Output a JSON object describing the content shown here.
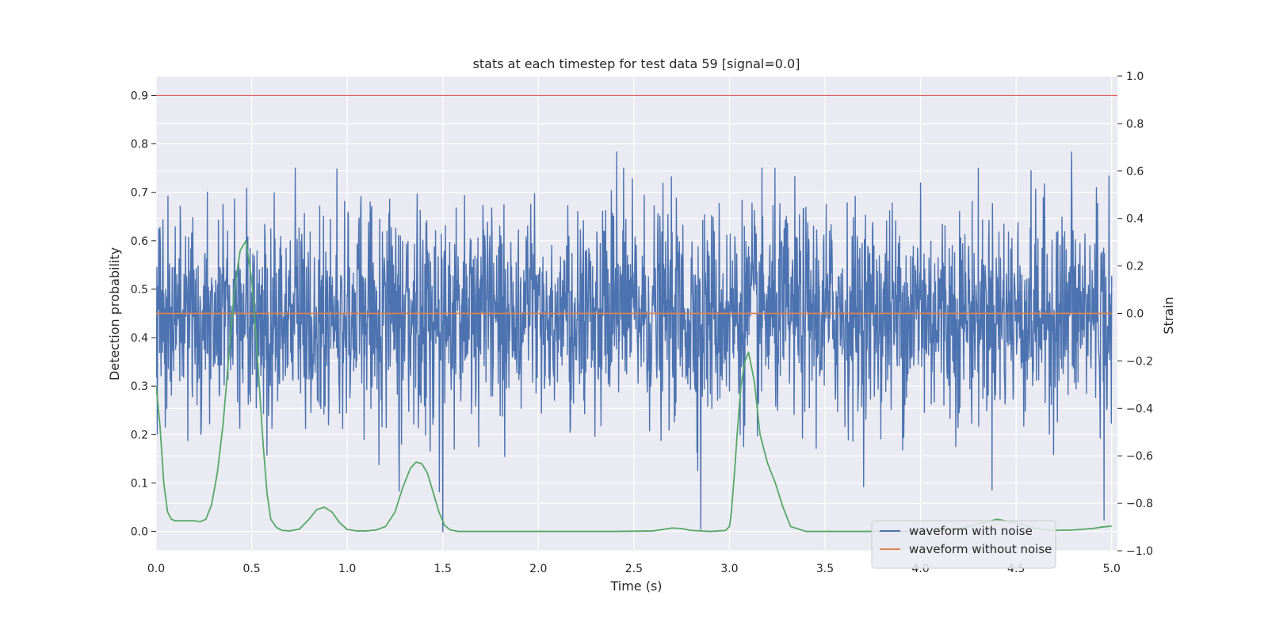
{
  "chart_data": {
    "type": "line",
    "title": "stats at each timestep for test data 59 [signal=0.0]",
    "xlabel": "Time (s)",
    "ylabel": "Detection probability",
    "y2label": "Strain",
    "xlim": [
      0.0,
      5.03
    ],
    "ylim": [
      -0.04,
      0.94
    ],
    "y2lim": [
      -1.0,
      1.0
    ],
    "xticks": [
      0.0,
      0.5,
      1.0,
      1.5,
      2.0,
      2.5,
      3.0,
      3.5,
      4.0,
      4.5,
      5.0
    ],
    "xtick_labels": [
      "0.0",
      "0.5",
      "1.0",
      "1.5",
      "2.0",
      "2.5",
      "3.0",
      "3.5",
      "4.0",
      "4.5",
      "5.0"
    ],
    "yticks": [
      0.0,
      0.1,
      0.2,
      0.3,
      0.4,
      0.5,
      0.6,
      0.7,
      0.8,
      0.9
    ],
    "ytick_labels": [
      "0.0",
      "0.1",
      "0.2",
      "0.3",
      "0.4",
      "0.5",
      "0.6",
      "0.7",
      "0.8",
      "0.9"
    ],
    "y2ticks": [
      -1.0,
      -0.8,
      -0.6,
      -0.4,
      -0.2,
      0.0,
      0.2,
      0.4,
      0.6,
      0.8,
      1.0
    ],
    "y2tick_labels": [
      "−1.0",
      "−0.8",
      "−0.6",
      "−0.4",
      "−0.2",
      "0.0",
      "0.2",
      "0.4",
      "0.6",
      "0.8",
      "1.0"
    ],
    "grid": true,
    "legend_position": "lower-right",
    "threshold": {
      "y": 0.9,
      "color": "#e06060"
    },
    "series": [
      {
        "name": "waveform with noise",
        "axis": "right",
        "color": "#4c72b0",
        "kind": "noise",
        "x_range": [
          0.0,
          5.0
        ],
        "amplitude_range": [
          -0.93,
          0.68
        ],
        "approx_points": 2500,
        "notable_peaks": [
          {
            "x": 2.41,
            "y": 0.68
          },
          {
            "x": 4.79,
            "y": 0.68
          },
          {
            "x": 4.0,
            "y": 0.55
          },
          {
            "x": 4.92,
            "y": 0.53
          },
          {
            "x": 1.12,
            "y": 0.47
          },
          {
            "x": 1.5,
            "y": -0.92
          },
          {
            "x": 2.85,
            "y": -0.91
          },
          {
            "x": 4.96,
            "y": -0.87
          }
        ]
      },
      {
        "name": "waveform without noise",
        "axis": "right",
        "color": "#dd8452",
        "x": [
          0.0,
          5.0
        ],
        "y": [
          0.0,
          0.0
        ]
      },
      {
        "name": "",
        "axis": "left",
        "color": "#55a868",
        "x": [
          0.0,
          0.02,
          0.04,
          0.06,
          0.08,
          0.1,
          0.15,
          0.2,
          0.23,
          0.26,
          0.29,
          0.32,
          0.35,
          0.38,
          0.41,
          0.44,
          0.47,
          0.5,
          0.52,
          0.54,
          0.56,
          0.58,
          0.6,
          0.63,
          0.66,
          0.7,
          0.75,
          0.8,
          0.84,
          0.88,
          0.92,
          0.96,
          1.0,
          1.05,
          1.1,
          1.15,
          1.2,
          1.25,
          1.29,
          1.33,
          1.36,
          1.39,
          1.42,
          1.45,
          1.48,
          1.51,
          1.54,
          1.58,
          1.65,
          1.8,
          2.0,
          2.2,
          2.4,
          2.6,
          2.65,
          2.7,
          2.75,
          2.8,
          2.9,
          2.98,
          3.0,
          3.01,
          3.02,
          3.03,
          3.04,
          3.05,
          3.06,
          3.08,
          3.1,
          3.13,
          3.16,
          3.2,
          3.24,
          3.28,
          3.32,
          3.4,
          3.6,
          3.8,
          4.0,
          4.2,
          4.3,
          4.4,
          4.5,
          4.6,
          4.7,
          4.8,
          4.9,
          4.95,
          5.0
        ],
        "y": [
          0.3,
          0.22,
          0.1,
          0.04,
          0.025,
          0.022,
          0.022,
          0.022,
          0.02,
          0.025,
          0.055,
          0.12,
          0.22,
          0.36,
          0.5,
          0.58,
          0.6,
          0.52,
          0.42,
          0.3,
          0.18,
          0.08,
          0.025,
          0.008,
          0.002,
          0.001,
          0.005,
          0.025,
          0.045,
          0.05,
          0.04,
          0.018,
          0.004,
          0.001,
          0.001,
          0.003,
          0.01,
          0.04,
          0.09,
          0.13,
          0.143,
          0.14,
          0.12,
          0.08,
          0.04,
          0.012,
          0.003,
          0.0,
          0.0,
          0.0,
          0.0,
          0.0,
          0.0,
          0.001,
          0.004,
          0.007,
          0.006,
          0.002,
          0.0,
          0.002,
          0.01,
          0.04,
          0.09,
          0.14,
          0.2,
          0.25,
          0.3,
          0.35,
          0.37,
          0.31,
          0.2,
          0.14,
          0.1,
          0.05,
          0.01,
          0.0,
          0.0,
          0.0,
          0.0,
          0.005,
          0.015,
          0.025,
          0.018,
          0.006,
          0.002,
          0.003,
          0.006,
          0.009,
          0.011
        ]
      }
    ]
  }
}
